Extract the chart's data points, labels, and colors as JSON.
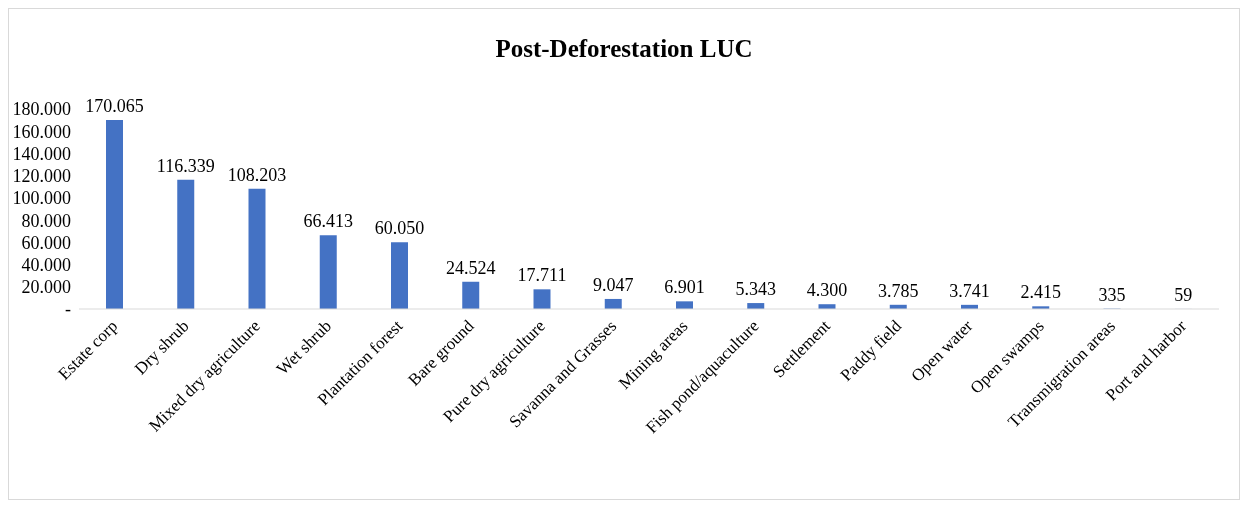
{
  "chart_data": {
    "type": "bar",
    "title": "Post-Deforestation LUC",
    "categories": [
      "Estate corp",
      "Dry shrub",
      "Mixed dry agriculture",
      "Wet shrub",
      "Plantation forest",
      "Bare ground",
      "Pure dry agriculture",
      "Savanna and Grasses",
      "Mining areas",
      "Fish pond/aquaculture",
      "Settlement",
      "Paddy field",
      "Open water",
      "Open swamps",
      "Transmigration areas",
      "Port and harbor"
    ],
    "values": [
      170065,
      116339,
      108203,
      66413,
      60050,
      24524,
      17711,
      9047,
      6901,
      5343,
      4300,
      3785,
      3741,
      2415,
      335,
      59
    ],
    "value_labels": [
      "170.065",
      "116.339",
      "108.203",
      "66.413",
      "60.050",
      "24.524",
      "17.711",
      "9.047",
      "6.901",
      "5.343",
      "4.300",
      "3.785",
      "3.741",
      "2.415",
      "335",
      "59"
    ],
    "color": "#4472c4",
    "ylim": [
      0,
      180000
    ],
    "yticks": [
      {
        "value": 0,
        "label": "-"
      },
      {
        "value": 20000,
        "label": "20.000"
      },
      {
        "value": 40000,
        "label": "40.000"
      },
      {
        "value": 60000,
        "label": "60.000"
      },
      {
        "value": 80000,
        "label": "80.000"
      },
      {
        "value": 100000,
        "label": "100.000"
      },
      {
        "value": 120000,
        "label": "120.000"
      },
      {
        "value": 140000,
        "label": "140.000"
      },
      {
        "value": 160000,
        "label": "160.000"
      },
      {
        "value": 180000,
        "label": "180.000"
      }
    ],
    "grid": false,
    "legend": false
  }
}
